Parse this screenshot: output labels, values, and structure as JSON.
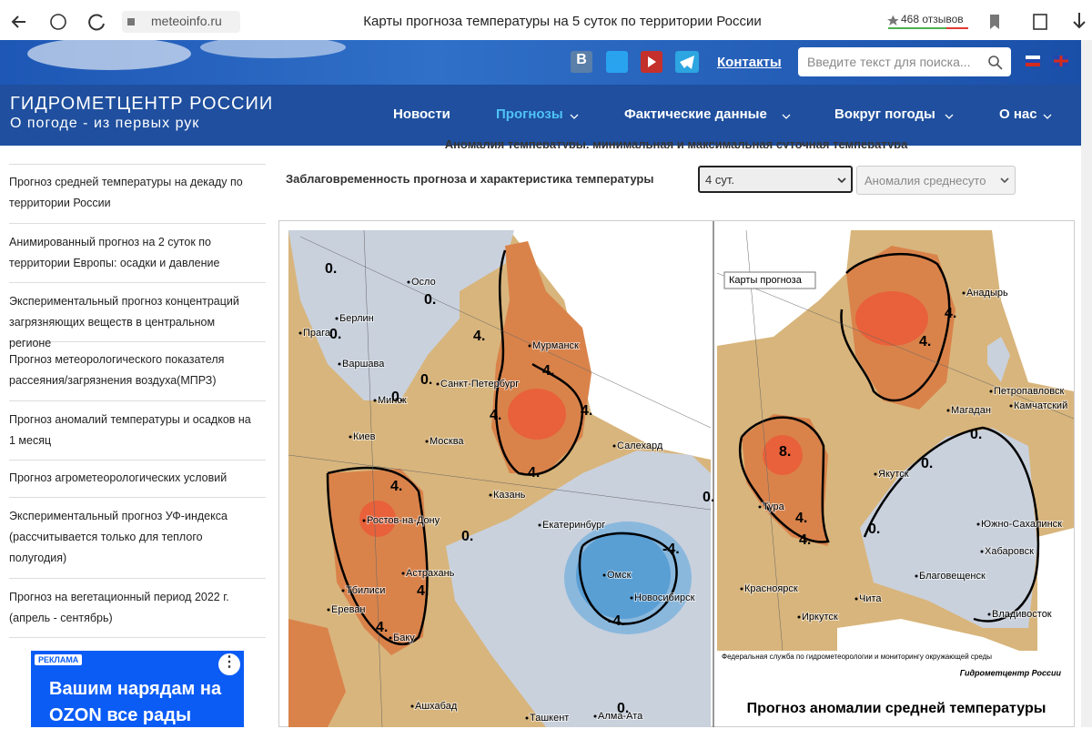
{
  "browser": {
    "url": "meteoinfo.ru",
    "tab_title": "Карты прогноза температуры на 5 суток по территории России",
    "reviews": "468 отзывов"
  },
  "header": {
    "vk": "В",
    "contacts": "Контакты",
    "search_placeholder": "Введите текст для поиска...",
    "title": "ГИДРОМЕТЦЕНТР РОССИИ",
    "subtitle": "О погоде - из первых рук"
  },
  "nav": [
    "Новости",
    "Прогнозы",
    "Фактические данные",
    "Вокруг погоды",
    "О нас"
  ],
  "sidebar": {
    "cut_item": "территории России",
    "items": [
      "Прогноз средней температуры на декаду по территории России",
      "Анимированный прогноз на 2 суток по территории Европы: осадки и давление",
      "Экспериментальный прогноз концентраций загрязняющих веществ в центральном регионе",
      "Прогноз метеорологического показателя рассеяния/загрязнения воздуха(МПРЗ)",
      "Прогноз аномалий температуры и осадков на 1 месяц",
      "Прогноз агрометеорологических условий",
      "Экспериментальный прогноз УФ-индекса (рассчитывается только для теплого полугодия)",
      "Прогноз на вегетационный период 2022 г. (апрель - сентябрь)"
    ],
    "ad": {
      "badge": "РЕКЛАМА",
      "text": "Вашим нарядам на OZON все рады"
    }
  },
  "main": {
    "heading": "Аномалия температуры, минимальная и максимальная суточная температура",
    "selector_label": "Заблаговременность прогноза и характеристика температуры",
    "lead": "4 сут.",
    "characteristic": "Аномалия среднесуто",
    "left_map": {
      "cities": [
        "Осло",
        "Берлин",
        "Прага",
        "Варшава",
        "Минск",
        "Санкт-Петербург",
        "Мурманск",
        "Киев",
        "Москва",
        "Казань",
        "Салехард",
        "Ростов-на-Дону",
        "Екатеринбург",
        "Омск",
        "Новосибирск",
        "Астрахань",
        "Тбилиси",
        "Ереван",
        "Баку",
        "Ашхабад",
        "Ташкент",
        "Алма-Ата"
      ],
      "contours": [
        "0.",
        "0.",
        "0.",
        "0.",
        "0.",
        "0.",
        "0.",
        "0.",
        "4.",
        "4.",
        "4.",
        "4.",
        "4.",
        "4.",
        "4.",
        "4.",
        "-4.",
        "-4."
      ]
    },
    "right_map": {
      "tooltip": "Карты прогноза",
      "cities": [
        "Анадырь",
        "Петропавловск",
        "Камчатский",
        "Магадан",
        "Якутск",
        "Тура",
        "Южно-Сахалинск",
        "Хабаровск",
        "Благовещенск",
        "Красноярск",
        "Чита",
        "Иркутск",
        "Владивосток"
      ],
      "contours": [
        "4.",
        "4.",
        "4.",
        "4.",
        "0.",
        "0.",
        "0.",
        "8."
      ],
      "agency": "Федеральная служба по гидрометеорологии и мониторингу окружающей среды",
      "brand": "Гидрометцентр России",
      "caption": "Прогноз аномалии средней температуры"
    }
  }
}
